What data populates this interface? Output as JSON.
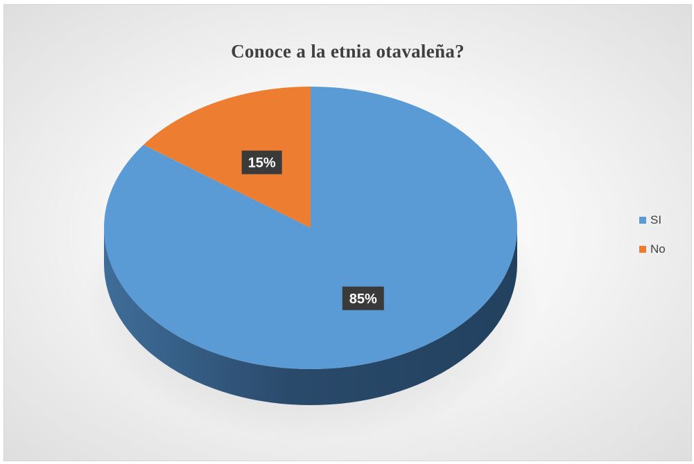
{
  "chart_data": {
    "type": "pie",
    "title": "Conoce a la etnia otavaleña?",
    "categories": [
      "SI",
      "No"
    ],
    "values": [
      85,
      15
    ],
    "data_labels": [
      "85%",
      "15%"
    ],
    "legend_position": "right",
    "colors": {
      "SI": "#5b9bd5",
      "No": "#ed7d31",
      "label_background": "#3a3a3a",
      "label_text": "#ffffff"
    }
  }
}
